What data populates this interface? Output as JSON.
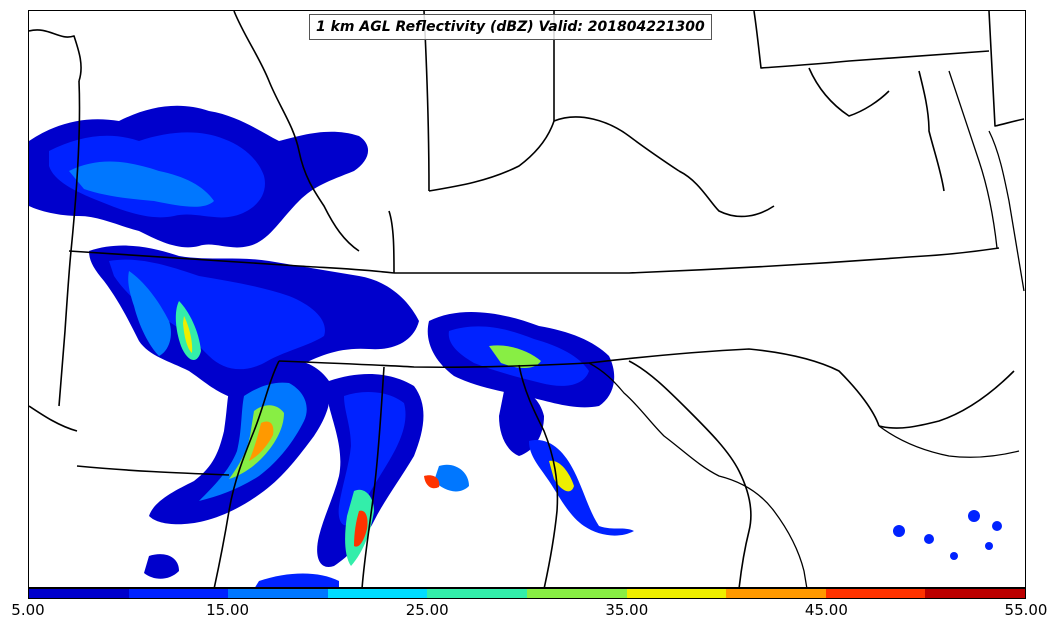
{
  "title": "1 km AGL Reflectivity (dBZ) Valid: 201804221300",
  "colorbar": {
    "colors": [
      "#0000cc",
      "#0022ff",
      "#0077ff",
      "#00ddff",
      "#33eeaa",
      "#88ee44",
      "#eeee00",
      "#ff9900",
      "#ff3300",
      "#bb0000"
    ],
    "tick_labels": [
      "5.00",
      "15.00",
      "25.00",
      "35.00",
      "45.00",
      "55.00"
    ],
    "min": 5,
    "max": 55,
    "tick_values": [
      5,
      15,
      25,
      35,
      45,
      55
    ]
  }
}
